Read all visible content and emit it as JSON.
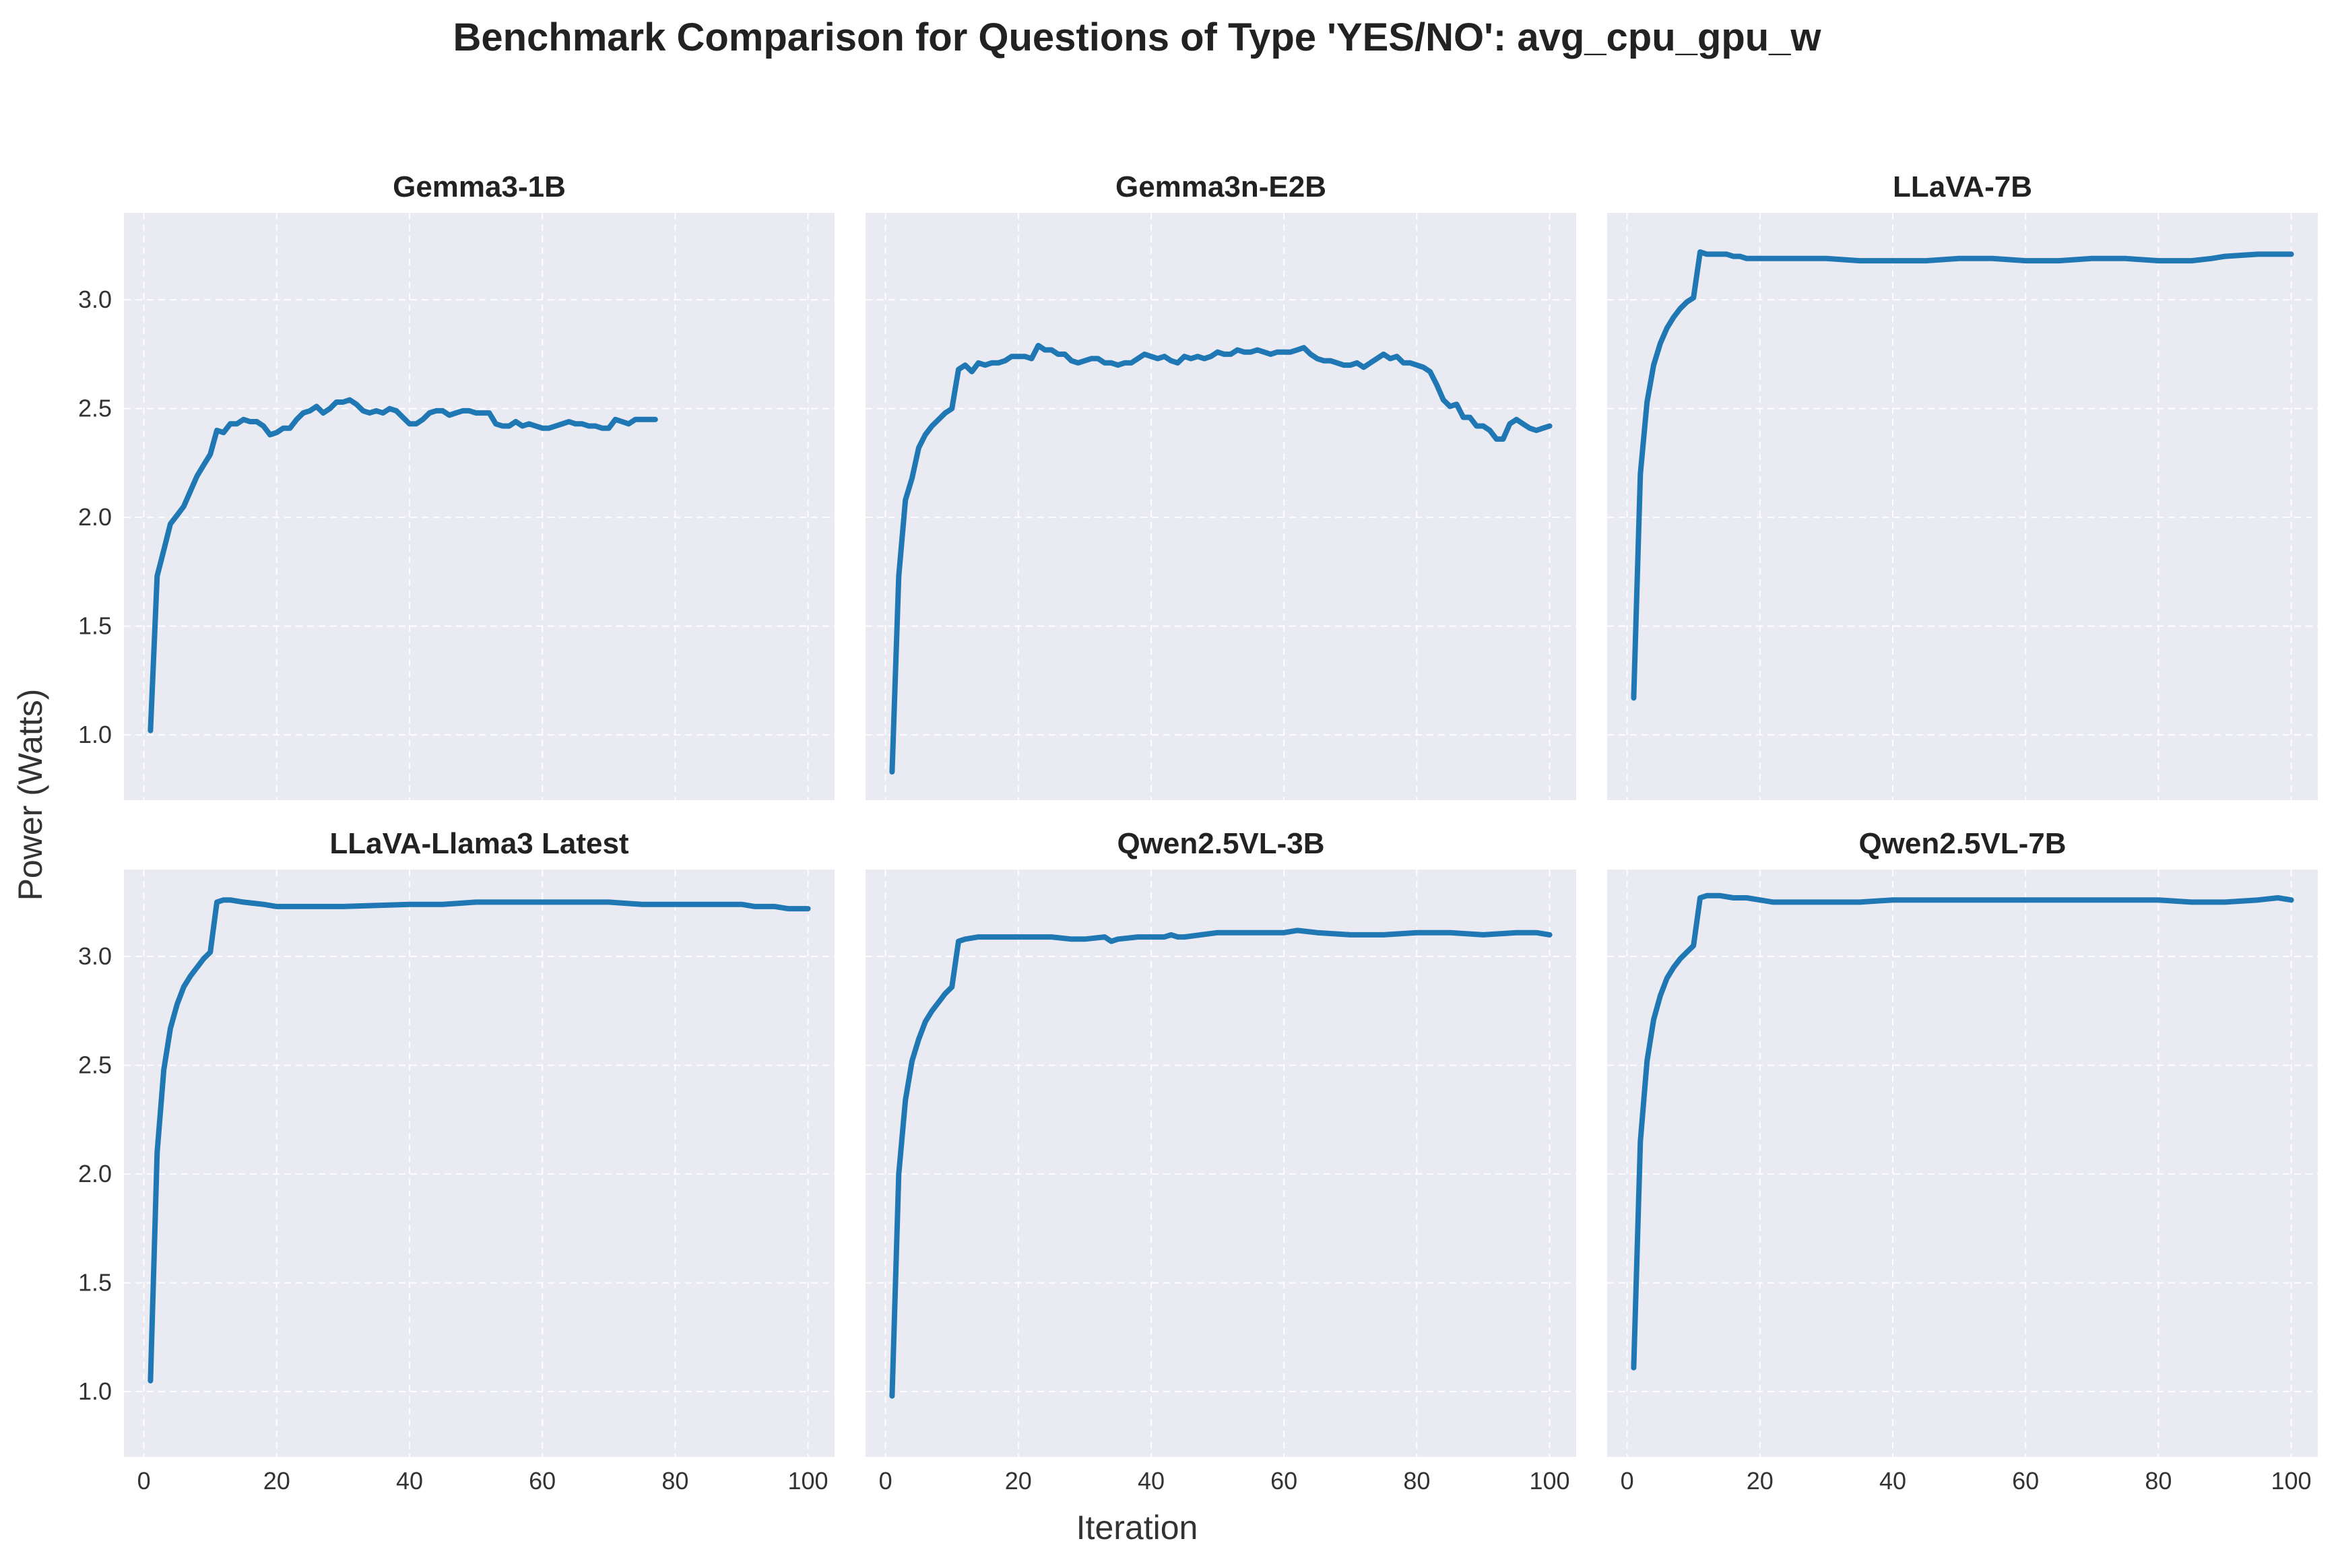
{
  "chart_data": {
    "type": "line",
    "title": "Benchmark Comparison for Questions of Type 'YES/NO': avg_cpu_gpu_w",
    "xlabel": "Iteration",
    "ylabel": "Power (Watts)",
    "xlim": [
      -3,
      104
    ],
    "ylim": [
      0.7,
      3.4
    ],
    "x_ticks": [
      0,
      20,
      40,
      60,
      80,
      100
    ],
    "y_ticks": [
      1.0,
      1.5,
      2.0,
      2.5,
      3.0
    ],
    "grid": true,
    "series_color": "#1F77B4",
    "panel_background": "#EAEAF2",
    "panels": [
      {
        "title": "Gemma3-1B",
        "points": [
          [
            1,
            1.02
          ],
          [
            2,
            1.73
          ],
          [
            3,
            1.85
          ],
          [
            4,
            1.97
          ],
          [
            5,
            2.01
          ],
          [
            6,
            2.05
          ],
          [
            7,
            2.12
          ],
          [
            8,
            2.19
          ],
          [
            9,
            2.24
          ],
          [
            10,
            2.29
          ],
          [
            11,
            2.4
          ],
          [
            12,
            2.39
          ],
          [
            13,
            2.43
          ],
          [
            14,
            2.43
          ],
          [
            15,
            2.45
          ],
          [
            16,
            2.44
          ],
          [
            17,
            2.44
          ],
          [
            18,
            2.42
          ],
          [
            19,
            2.38
          ],
          [
            20,
            2.39
          ],
          [
            21,
            2.41
          ],
          [
            22,
            2.41
          ],
          [
            23,
            2.45
          ],
          [
            24,
            2.48
          ],
          [
            25,
            2.49
          ],
          [
            26,
            2.51
          ],
          [
            27,
            2.48
          ],
          [
            28,
            2.5
          ],
          [
            29,
            2.53
          ],
          [
            30,
            2.53
          ],
          [
            31,
            2.54
          ],
          [
            32,
            2.52
          ],
          [
            33,
            2.49
          ],
          [
            34,
            2.48
          ],
          [
            35,
            2.49
          ],
          [
            36,
            2.48
          ],
          [
            37,
            2.5
          ],
          [
            38,
            2.49
          ],
          [
            39,
            2.46
          ],
          [
            40,
            2.43
          ],
          [
            41,
            2.43
          ],
          [
            42,
            2.45
          ],
          [
            43,
            2.48
          ],
          [
            44,
            2.49
          ],
          [
            45,
            2.49
          ],
          [
            46,
            2.47
          ],
          [
            47,
            2.48
          ],
          [
            48,
            2.49
          ],
          [
            49,
            2.49
          ],
          [
            50,
            2.48
          ],
          [
            51,
            2.48
          ],
          [
            52,
            2.48
          ],
          [
            53,
            2.43
          ],
          [
            54,
            2.42
          ],
          [
            55,
            2.42
          ],
          [
            56,
            2.44
          ],
          [
            57,
            2.42
          ],
          [
            58,
            2.43
          ],
          [
            59,
            2.42
          ],
          [
            60,
            2.41
          ],
          [
            61,
            2.41
          ],
          [
            62,
            2.42
          ],
          [
            63,
            2.43
          ],
          [
            64,
            2.44
          ],
          [
            65,
            2.43
          ],
          [
            66,
            2.43
          ],
          [
            67,
            2.42
          ],
          [
            68,
            2.42
          ],
          [
            69,
            2.41
          ],
          [
            70,
            2.41
          ],
          [
            71,
            2.45
          ],
          [
            72,
            2.44
          ],
          [
            73,
            2.43
          ],
          [
            74,
            2.45
          ],
          [
            75,
            2.45
          ],
          [
            76,
            2.45
          ],
          [
            77,
            2.45
          ]
        ]
      },
      {
        "title": "Gemma3n-E2B",
        "points": [
          [
            1,
            0.83
          ],
          [
            2,
            1.73
          ],
          [
            3,
            2.08
          ],
          [
            4,
            2.18
          ],
          [
            5,
            2.32
          ],
          [
            6,
            2.38
          ],
          [
            7,
            2.42
          ],
          [
            8,
            2.45
          ],
          [
            9,
            2.48
          ],
          [
            10,
            2.5
          ],
          [
            11,
            2.68
          ],
          [
            12,
            2.7
          ],
          [
            13,
            2.67
          ],
          [
            14,
            2.71
          ],
          [
            15,
            2.7
          ],
          [
            16,
            2.71
          ],
          [
            17,
            2.71
          ],
          [
            18,
            2.72
          ],
          [
            19,
            2.74
          ],
          [
            20,
            2.74
          ],
          [
            21,
            2.74
          ],
          [
            22,
            2.73
          ],
          [
            23,
            2.79
          ],
          [
            24,
            2.77
          ],
          [
            25,
            2.77
          ],
          [
            26,
            2.75
          ],
          [
            27,
            2.75
          ],
          [
            28,
            2.72
          ],
          [
            29,
            2.71
          ],
          [
            30,
            2.72
          ],
          [
            31,
            2.73
          ],
          [
            32,
            2.73
          ],
          [
            33,
            2.71
          ],
          [
            34,
            2.71
          ],
          [
            35,
            2.7
          ],
          [
            36,
            2.71
          ],
          [
            37,
            2.71
          ],
          [
            38,
            2.73
          ],
          [
            39,
            2.75
          ],
          [
            40,
            2.74
          ],
          [
            41,
            2.73
          ],
          [
            42,
            2.74
          ],
          [
            43,
            2.72
          ],
          [
            44,
            2.71
          ],
          [
            45,
            2.74
          ],
          [
            46,
            2.73
          ],
          [
            47,
            2.74
          ],
          [
            48,
            2.73
          ],
          [
            49,
            2.74
          ],
          [
            50,
            2.76
          ],
          [
            51,
            2.75
          ],
          [
            52,
            2.75
          ],
          [
            53,
            2.77
          ],
          [
            54,
            2.76
          ],
          [
            55,
            2.76
          ],
          [
            56,
            2.77
          ],
          [
            57,
            2.76
          ],
          [
            58,
            2.75
          ],
          [
            59,
            2.76
          ],
          [
            60,
            2.76
          ],
          [
            61,
            2.76
          ],
          [
            62,
            2.77
          ],
          [
            63,
            2.78
          ],
          [
            64,
            2.75
          ],
          [
            65,
            2.73
          ],
          [
            66,
            2.72
          ],
          [
            67,
            2.72
          ],
          [
            68,
            2.71
          ],
          [
            69,
            2.7
          ],
          [
            70,
            2.7
          ],
          [
            71,
            2.71
          ],
          [
            72,
            2.69
          ],
          [
            73,
            2.71
          ],
          [
            74,
            2.73
          ],
          [
            75,
            2.75
          ],
          [
            76,
            2.73
          ],
          [
            77,
            2.74
          ],
          [
            78,
            2.71
          ],
          [
            79,
            2.71
          ],
          [
            80,
            2.7
          ],
          [
            81,
            2.69
          ],
          [
            82,
            2.67
          ],
          [
            83,
            2.61
          ],
          [
            84,
            2.54
          ],
          [
            85,
            2.51
          ],
          [
            86,
            2.52
          ],
          [
            87,
            2.46
          ],
          [
            88,
            2.46
          ],
          [
            89,
            2.42
          ],
          [
            90,
            2.42
          ],
          [
            91,
            2.4
          ],
          [
            92,
            2.36
          ],
          [
            93,
            2.36
          ],
          [
            94,
            2.43
          ],
          [
            95,
            2.45
          ],
          [
            96,
            2.43
          ],
          [
            97,
            2.41
          ],
          [
            98,
            2.4
          ],
          [
            99,
            2.41
          ],
          [
            100,
            2.42
          ]
        ]
      },
      {
        "title": "LLaVA-7B",
        "points": [
          [
            1,
            1.17
          ],
          [
            2,
            2.2
          ],
          [
            3,
            2.53
          ],
          [
            4,
            2.7
          ],
          [
            5,
            2.8
          ],
          [
            6,
            2.87
          ],
          [
            7,
            2.92
          ],
          [
            8,
            2.96
          ],
          [
            9,
            2.99
          ],
          [
            10,
            3.01
          ],
          [
            11,
            3.22
          ],
          [
            12,
            3.21
          ],
          [
            13,
            3.21
          ],
          [
            14,
            3.21
          ],
          [
            15,
            3.21
          ],
          [
            16,
            3.2
          ],
          [
            17,
            3.2
          ],
          [
            18,
            3.19
          ],
          [
            19,
            3.19
          ],
          [
            20,
            3.19
          ],
          [
            25,
            3.19
          ],
          [
            30,
            3.19
          ],
          [
            35,
            3.18
          ],
          [
            40,
            3.18
          ],
          [
            45,
            3.18
          ],
          [
            50,
            3.19
          ],
          [
            55,
            3.19
          ],
          [
            60,
            3.18
          ],
          [
            65,
            3.18
          ],
          [
            70,
            3.19
          ],
          [
            75,
            3.19
          ],
          [
            80,
            3.18
          ],
          [
            85,
            3.18
          ],
          [
            88,
            3.19
          ],
          [
            90,
            3.2
          ],
          [
            95,
            3.21
          ],
          [
            98,
            3.21
          ],
          [
            100,
            3.21
          ]
        ]
      },
      {
        "title": "LLaVA-Llama3 Latest",
        "points": [
          [
            1,
            1.05
          ],
          [
            2,
            2.1
          ],
          [
            3,
            2.48
          ],
          [
            4,
            2.67
          ],
          [
            5,
            2.78
          ],
          [
            6,
            2.86
          ],
          [
            7,
            2.91
          ],
          [
            8,
            2.95
          ],
          [
            9,
            2.99
          ],
          [
            10,
            3.02
          ],
          [
            11,
            3.25
          ],
          [
            12,
            3.26
          ],
          [
            13,
            3.26
          ],
          [
            15,
            3.25
          ],
          [
            18,
            3.24
          ],
          [
            20,
            3.23
          ],
          [
            25,
            3.23
          ],
          [
            30,
            3.23
          ],
          [
            40,
            3.24
          ],
          [
            45,
            3.24
          ],
          [
            50,
            3.25
          ],
          [
            55,
            3.25
          ],
          [
            60,
            3.25
          ],
          [
            65,
            3.25
          ],
          [
            70,
            3.25
          ],
          [
            75,
            3.24
          ],
          [
            80,
            3.24
          ],
          [
            85,
            3.24
          ],
          [
            90,
            3.24
          ],
          [
            92,
            3.23
          ],
          [
            95,
            3.23
          ],
          [
            97,
            3.22
          ],
          [
            100,
            3.22
          ]
        ]
      },
      {
        "title": "Qwen2.5VL-3B",
        "points": [
          [
            1,
            0.98
          ],
          [
            2,
            2.0
          ],
          [
            3,
            2.34
          ],
          [
            4,
            2.52
          ],
          [
            5,
            2.62
          ],
          [
            6,
            2.7
          ],
          [
            7,
            2.75
          ],
          [
            8,
            2.79
          ],
          [
            9,
            2.83
          ],
          [
            10,
            2.86
          ],
          [
            11,
            3.07
          ],
          [
            12,
            3.08
          ],
          [
            14,
            3.09
          ],
          [
            16,
            3.09
          ],
          [
            18,
            3.09
          ],
          [
            20,
            3.09
          ],
          [
            25,
            3.09
          ],
          [
            28,
            3.08
          ],
          [
            30,
            3.08
          ],
          [
            33,
            3.09
          ],
          [
            34,
            3.07
          ],
          [
            35,
            3.08
          ],
          [
            38,
            3.09
          ],
          [
            40,
            3.09
          ],
          [
            42,
            3.09
          ],
          [
            43,
            3.1
          ],
          [
            44,
            3.09
          ],
          [
            45,
            3.09
          ],
          [
            50,
            3.11
          ],
          [
            55,
            3.11
          ],
          [
            60,
            3.11
          ],
          [
            62,
            3.12
          ],
          [
            65,
            3.11
          ],
          [
            70,
            3.1
          ],
          [
            75,
            3.1
          ],
          [
            80,
            3.11
          ],
          [
            85,
            3.11
          ],
          [
            90,
            3.1
          ],
          [
            95,
            3.11
          ],
          [
            98,
            3.11
          ],
          [
            100,
            3.1
          ]
        ]
      },
      {
        "title": "Qwen2.5VL-7B",
        "points": [
          [
            1,
            1.11
          ],
          [
            2,
            2.15
          ],
          [
            3,
            2.52
          ],
          [
            4,
            2.71
          ],
          [
            5,
            2.82
          ],
          [
            6,
            2.9
          ],
          [
            7,
            2.95
          ],
          [
            8,
            2.99
          ],
          [
            9,
            3.02
          ],
          [
            10,
            3.05
          ],
          [
            11,
            3.27
          ],
          [
            12,
            3.28
          ],
          [
            14,
            3.28
          ],
          [
            16,
            3.27
          ],
          [
            18,
            3.27
          ],
          [
            20,
            3.26
          ],
          [
            22,
            3.25
          ],
          [
            25,
            3.25
          ],
          [
            30,
            3.25
          ],
          [
            35,
            3.25
          ],
          [
            40,
            3.26
          ],
          [
            45,
            3.26
          ],
          [
            50,
            3.26
          ],
          [
            55,
            3.26
          ],
          [
            60,
            3.26
          ],
          [
            65,
            3.26
          ],
          [
            70,
            3.26
          ],
          [
            75,
            3.26
          ],
          [
            80,
            3.26
          ],
          [
            85,
            3.25
          ],
          [
            90,
            3.25
          ],
          [
            95,
            3.26
          ],
          [
            98,
            3.27
          ],
          [
            100,
            3.26
          ]
        ]
      }
    ]
  }
}
